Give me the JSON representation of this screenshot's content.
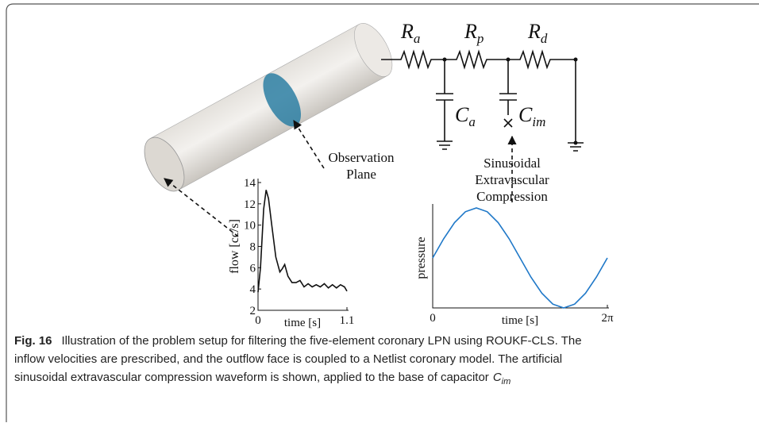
{
  "figure": {
    "circuit": {
      "components": [
        {
          "symbol": "R",
          "subscript": "a"
        },
        {
          "symbol": "R",
          "subscript": "p"
        },
        {
          "symbol": "R",
          "subscript": "d"
        },
        {
          "symbol": "C",
          "subscript": "a"
        },
        {
          "symbol": "C",
          "subscript": "im"
        }
      ]
    },
    "annotations": [
      {
        "lines": [
          "Observation",
          "Plane"
        ]
      },
      {
        "lines": [
          "Sinusoidal",
          "Extravascular",
          "Compression"
        ]
      }
    ],
    "caption": {
      "label": "Fig. 16",
      "lines": [
        "Illustration of the problem setup for filtering the five-element coronary LPN using ROUKF-CLS. The",
        "inflow velocities are prescribed, and the outflow face is coupled to a Netlist coronary model. The artificial",
        "sinusoidal extravascular compression waveform is shown, applied to the base of capacitor"
      ],
      "symbol": "C",
      "subscript": "im"
    }
  },
  "chart_data": [
    {
      "type": "line",
      "xlabel": "time [s]",
      "ylabel": "flow [cc/s]",
      "color": "#111111",
      "x": [
        0,
        0.03,
        0.07,
        0.1,
        0.13,
        0.17,
        0.22,
        0.27,
        0.3,
        0.33,
        0.37,
        0.42,
        0.47,
        0.52,
        0.57,
        0.62,
        0.67,
        0.72,
        0.77,
        0.82,
        0.87,
        0.92,
        0.97,
        1.02,
        1.07,
        1.1
      ],
      "values": [
        3.7,
        6,
        11.5,
        13.3,
        12.5,
        10,
        7,
        5.6,
        5.9,
        6.3,
        5.2,
        4.6,
        4.6,
        4.8,
        4.2,
        4.5,
        4.2,
        4.4,
        4.2,
        4.5,
        4.1,
        4.4,
        4.1,
        4.4,
        4.2,
        3.8
      ],
      "xlim": [
        0,
        1.1
      ],
      "xticks": [
        0,
        1.1
      ],
      "ylim": [
        2,
        14
      ],
      "yticks": [
        2,
        4,
        6,
        8,
        10,
        12,
        14
      ]
    },
    {
      "type": "line",
      "xlabel": "time [s]",
      "ylabel": "pressure",
      "color": "#1f78c8",
      "x": [
        0,
        0.393,
        0.785,
        1.178,
        1.571,
        1.963,
        2.356,
        2.749,
        3.142,
        3.534,
        3.927,
        4.32,
        4.712,
        5.105,
        5.498,
        5.89,
        6.283
      ],
      "values": [
        0,
        0.383,
        0.707,
        0.924,
        1,
        0.924,
        0.707,
        0.383,
        0,
        -0.383,
        -0.707,
        -0.924,
        -1,
        -0.924,
        -0.707,
        -0.383,
        0
      ],
      "xlim": [
        0,
        6.283
      ],
      "xticks": [
        0,
        {
          "value": 6.283,
          "label": "2π"
        }
      ],
      "ylim": [
        -1,
        1
      ]
    }
  ]
}
